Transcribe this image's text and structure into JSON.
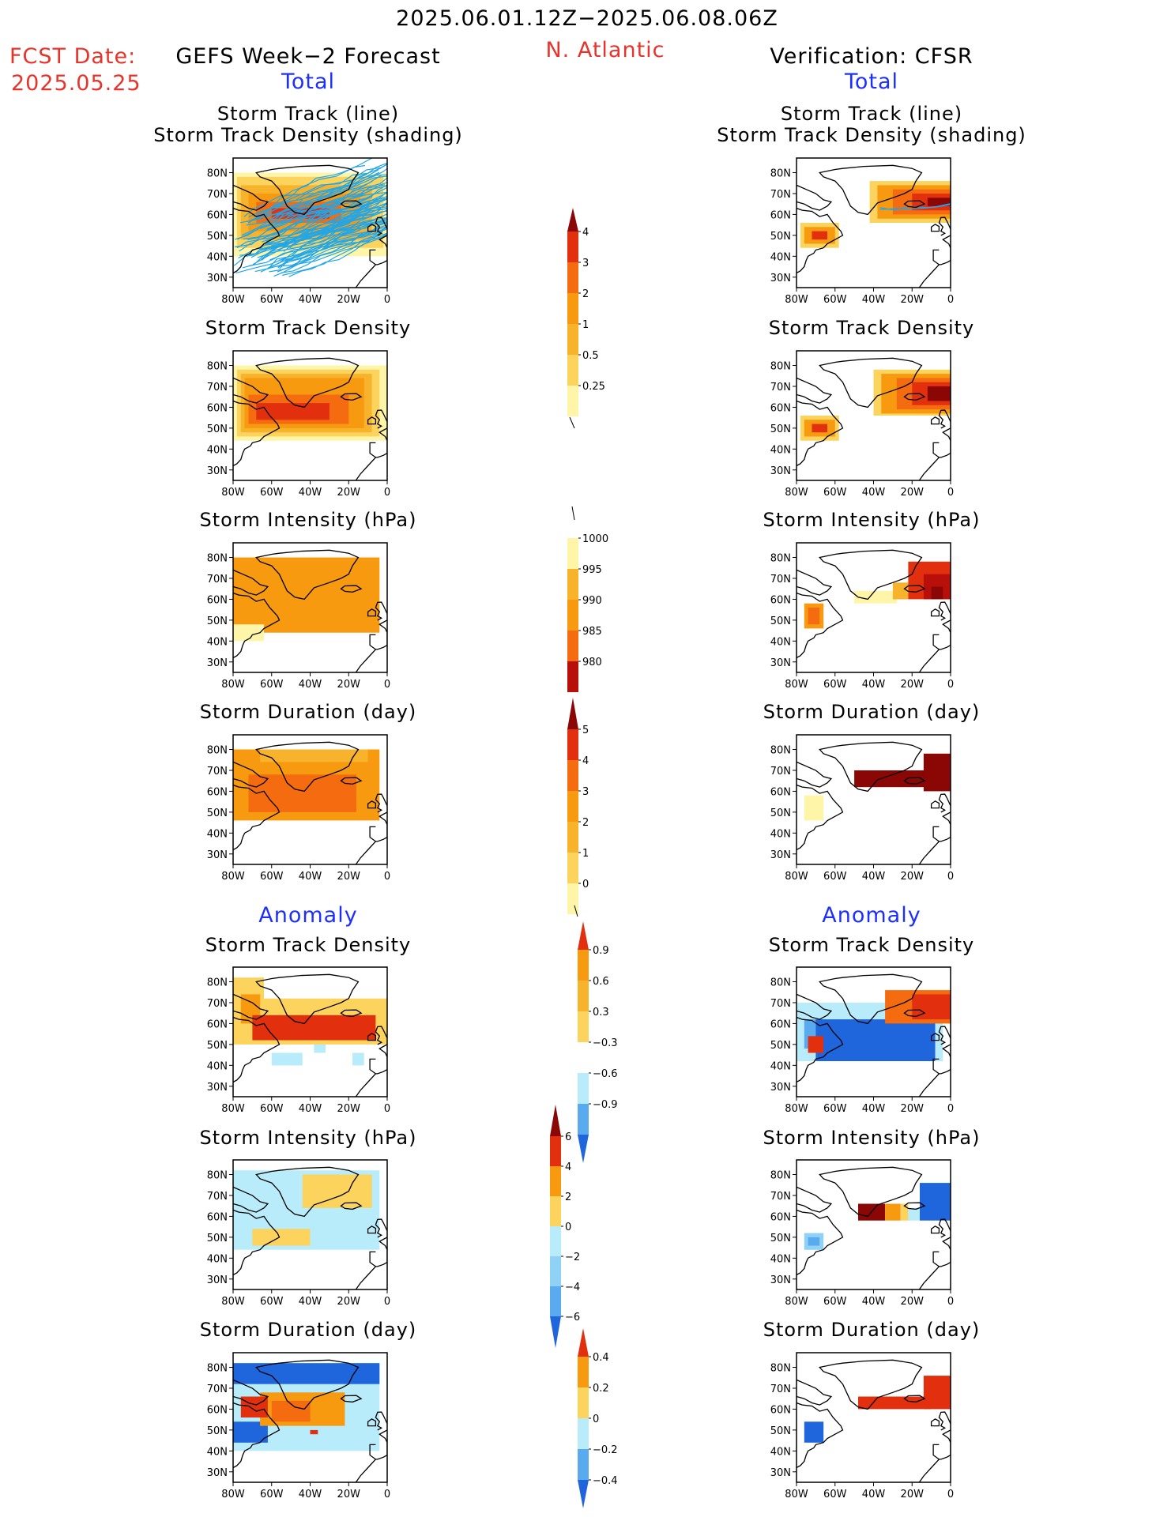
{
  "header": {
    "date_range": "2025.06.01.12Z−2025.06.08.06Z",
    "fcst_date_label": "FCST Date:",
    "fcst_date_value": "2025.05.25",
    "left_title": "GEFS Week−2 Forecast",
    "region": "N. Atlantic",
    "right_title": "Verification: CFSR",
    "left_total": "Total",
    "right_total": "Total",
    "left_anomaly": "Anomaly",
    "right_anomaly": "Anomaly"
  },
  "panel_titles": {
    "track_line": "Storm Track (line)",
    "track_shading": "Storm Track Density (shading)",
    "density": "Storm Track Density",
    "intensity": "Storm Intensity (hPa)",
    "duration": "Storm Duration (day)"
  },
  "colors": {
    "yellow_light": "#fff5a8",
    "yellow": "#fcd35c",
    "orange_light": "#f8b32c",
    "orange": "#f79a10",
    "orange_dark": "#f46b10",
    "red": "#e2300f",
    "red_dark": "#b90f0a",
    "maroon": "#8a0706",
    "blue_light": "#b8ecfa",
    "blue_mid": "#8fd2f5",
    "blue": "#5aaaf0",
    "blue_dark": "#1f66dc",
    "track_line": "#22a6e8"
  },
  "chart_data": [
    {
      "id": "gefs-total-track",
      "type": "heatmap",
      "panel_title": "Storm Track (line) / Storm Track Density (shading)",
      "xlabel_ticks": [
        "80W",
        "60W",
        "40W",
        "20W",
        "0"
      ],
      "ylabel_ticks": [
        "80N",
        "70N",
        "60N",
        "50N",
        "40N",
        "30N"
      ],
      "xlim": [
        -80,
        0
      ],
      "ylim": [
        25,
        87
      ],
      "shading_max_level": 3,
      "track_lines": true
    },
    {
      "id": "cfsr-total-track",
      "type": "heatmap",
      "panel_title": "Storm Track (line) / Storm Track Density (shading)",
      "xlabel_ticks": [
        "80W",
        "60W",
        "40W",
        "20W",
        "0"
      ],
      "ylabel_ticks": [
        "80N",
        "70N",
        "60N",
        "50N",
        "40N",
        "30N"
      ],
      "xlim": [
        -80,
        0
      ],
      "ylim": [
        25,
        87
      ],
      "shading_max_level": 4,
      "track_lines": true
    },
    {
      "id": "density-colorbar",
      "type": "colorbar",
      "levels": [
        0.25,
        0.5,
        1,
        2,
        3,
        4
      ],
      "labels": [
        "0.25",
        "0.5",
        "1",
        "2",
        "3",
        "4"
      ]
    },
    {
      "id": "intensity-colorbar",
      "type": "colorbar",
      "levels": [
        1000,
        995,
        990,
        985,
        980
      ],
      "labels": [
        "1000",
        "995",
        "990",
        "985",
        "980"
      ]
    },
    {
      "id": "duration-colorbar",
      "type": "colorbar",
      "levels": [
        0,
        1,
        2,
        3,
        4,
        5
      ],
      "labels": [
        "0",
        "1",
        "2",
        "3",
        "4",
        "5"
      ]
    },
    {
      "id": "density-anomaly-colorbar",
      "type": "colorbar",
      "levels": [
        -0.9,
        -0.6,
        -0.3,
        0.3,
        0.6,
        0.9
      ],
      "labels": [
        "0.9",
        "0.6",
        "0.3",
        "−0.3",
        "−0.6",
        "−0.9"
      ]
    },
    {
      "id": "intensity-anomaly-colorbar",
      "type": "colorbar",
      "levels": [
        -6,
        -4,
        -2,
        0,
        2,
        4,
        6
      ],
      "labels": [
        "6",
        "4",
        "2",
        "0",
        "−2",
        "−4",
        "−6"
      ]
    },
    {
      "id": "duration-anomaly-colorbar",
      "type": "colorbar",
      "levels": [
        -0.4,
        -0.2,
        0,
        0.2,
        0.4
      ],
      "labels": [
        "0.4",
        "0.2",
        "0",
        "−0.2",
        "−0.4"
      ]
    }
  ]
}
